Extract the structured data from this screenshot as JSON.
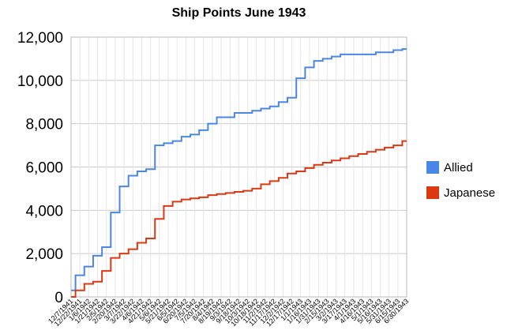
{
  "chart_data": {
    "type": "line",
    "title": "Ship Points June 1943",
    "xlabel": "",
    "ylabel": "",
    "ylim": [
      0,
      12000
    ],
    "yticks": [
      "0",
      "2,000",
      "4,000",
      "6,000",
      "8,000",
      "10,000",
      "12,000"
    ],
    "grid": true,
    "legend_position": "right",
    "x_tick_labels": [
      "12/7/1941",
      "12/22/1941",
      "1/6/1942",
      "1/21/1942",
      "2/5/1942",
      "2/20/1942",
      "3/7/1942",
      "3/22/1942",
      "4/6/1942",
      "4/21/1942",
      "5/6/1942",
      "5/21/1942",
      "6/5/1942",
      "6/20/1942",
      "7/5/1942",
      "7/20/1942",
      "8/4/1942",
      "8/19/1942",
      "9/3/1942",
      "9/18/1942",
      "10/3/1942",
      "10/18/1942",
      "11/2/1942",
      "11/17/1942",
      "12/2/1942",
      "12/17/1942",
      "1/1/1943",
      "1/16/1943",
      "1/31/1943",
      "2/15/1943",
      "3/2/1943",
      "3/17/1943",
      "4/1/1943",
      "4/16/1943",
      "5/1/1943",
      "5/16/1943",
      "5/31/1943",
      "6/15/1943",
      "6/30/1943"
    ],
    "x": [
      "12/7/1941",
      "12/22/1941",
      "1/6/1942",
      "1/21/1942",
      "2/5/1942",
      "2/20/1942",
      "3/7/1942",
      "3/22/1942",
      "4/6/1942",
      "4/21/1942",
      "5/6/1942",
      "5/21/1942",
      "6/5/1942",
      "6/20/1942",
      "7/5/1942",
      "7/20/1942",
      "8/4/1942",
      "8/19/1942",
      "9/3/1942",
      "9/18/1942",
      "10/3/1942",
      "10/18/1942",
      "11/2/1942",
      "11/17/1942",
      "12/2/1942",
      "12/17/1942",
      "1/1/1943",
      "1/16/1943",
      "1/31/1943",
      "2/15/1943",
      "3/2/1943",
      "3/17/1943",
      "4/1/1943",
      "4/16/1943",
      "5/1/1943",
      "5/16/1943",
      "5/31/1943",
      "6/15/1943",
      "6/30/1943"
    ],
    "series": [
      {
        "name": "Allied",
        "color": "#4a86e8",
        "values": [
          300,
          1000,
          1400,
          1900,
          2300,
          3900,
          5100,
          5600,
          5800,
          5900,
          7000,
          7100,
          7200,
          7400,
          7500,
          7700,
          8000,
          8300,
          8300,
          8500,
          8500,
          8600,
          8700,
          8800,
          9000,
          9200,
          10100,
          10600,
          10900,
          11000,
          11100,
          11200,
          11200,
          11200,
          11200,
          11300,
          11300,
          11400,
          11450
        ]
      },
      {
        "name": "Japanese",
        "color": "#dc3912",
        "values": [
          0,
          300,
          600,
          700,
          1200,
          1800,
          2000,
          2200,
          2500,
          2700,
          3600,
          4200,
          4400,
          4500,
          4550,
          4600,
          4700,
          4750,
          4800,
          4850,
          4900,
          5000,
          5200,
          5350,
          5500,
          5700,
          5800,
          5950,
          6100,
          6200,
          6300,
          6400,
          6500,
          6600,
          6700,
          6800,
          6900,
          7000,
          7200
        ]
      }
    ]
  }
}
